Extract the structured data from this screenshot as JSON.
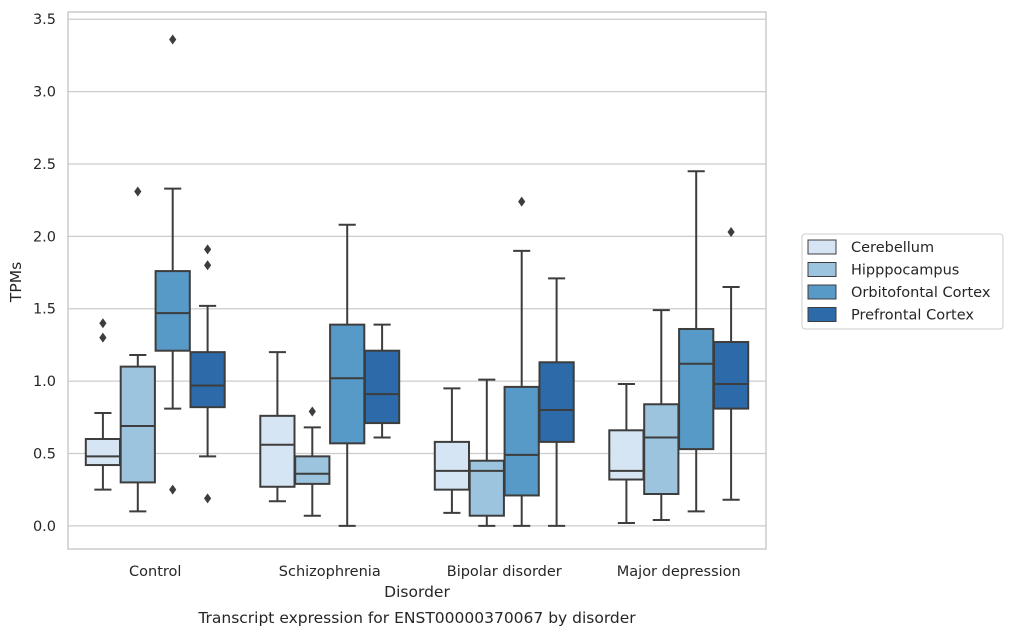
{
  "chart_data": {
    "type": "box",
    "xlabel": "Disorder",
    "ylabel": "TPMs",
    "caption": "Transcript expression for ENST00000370067 by disorder",
    "ylim": [
      -0.16,
      3.55
    ],
    "yticks": [
      "0.0",
      "0.5",
      "1.0",
      "1.5",
      "2.0",
      "2.5",
      "3.0",
      "3.5"
    ],
    "ytick_values": [
      0,
      0.5,
      1,
      1.5,
      2,
      2.5,
      3,
      3.5
    ],
    "grid": "horizontal",
    "legend_position": "right",
    "categories": [
      "Control",
      "Schizophrenia",
      "Bipolar disorder",
      "Major depression"
    ],
    "series": [
      {
        "name": "Cerebellum",
        "color": "#d6e5f3",
        "boxes": [
          {
            "whislo": 0.25,
            "q1": 0.42,
            "med": 0.48,
            "q3": 0.6,
            "whishi": 0.78,
            "fliers": [
              1.3,
              1.4
            ]
          },
          {
            "whislo": 0.17,
            "q1": 0.27,
            "med": 0.56,
            "q3": 0.76,
            "whishi": 1.2,
            "fliers": []
          },
          {
            "whislo": 0.09,
            "q1": 0.25,
            "med": 0.38,
            "q3": 0.58,
            "whishi": 0.95,
            "fliers": []
          },
          {
            "whislo": 0.02,
            "q1": 0.32,
            "med": 0.38,
            "q3": 0.66,
            "whishi": 0.98,
            "fliers": []
          }
        ]
      },
      {
        "name": "Hipppocampus",
        "color": "#9dc4de",
        "boxes": [
          {
            "whislo": 0.1,
            "q1": 0.3,
            "med": 0.69,
            "q3": 1.1,
            "whishi": 1.18,
            "fliers": [
              2.31
            ]
          },
          {
            "whislo": 0.07,
            "q1": 0.29,
            "med": 0.36,
            "q3": 0.48,
            "whishi": 0.68,
            "fliers": [
              0.79
            ]
          },
          {
            "whislo": 0.0,
            "q1": 0.07,
            "med": 0.38,
            "q3": 0.45,
            "whishi": 1.01,
            "fliers": []
          },
          {
            "whislo": 0.04,
            "q1": 0.22,
            "med": 0.61,
            "q3": 0.84,
            "whishi": 1.49,
            "fliers": []
          }
        ]
      },
      {
        "name": "Orbitofontal Cortex",
        "color": "#5799c7",
        "boxes": [
          {
            "whislo": 0.81,
            "q1": 1.21,
            "med": 1.47,
            "q3": 1.76,
            "whishi": 2.33,
            "fliers": [
              0.25,
              3.36
            ]
          },
          {
            "whislo": 0.0,
            "q1": 0.57,
            "med": 1.02,
            "q3": 1.39,
            "whishi": 2.08,
            "fliers": []
          },
          {
            "whislo": 0.0,
            "q1": 0.21,
            "med": 0.49,
            "q3": 0.96,
            "whishi": 1.9,
            "fliers": [
              2.24
            ]
          },
          {
            "whislo": 0.1,
            "q1": 0.53,
            "med": 1.12,
            "q3": 1.36,
            "whishi": 2.45,
            "fliers": []
          }
        ]
      },
      {
        "name": "Prefrontal Cortex",
        "color": "#2d6aa9",
        "boxes": [
          {
            "whislo": 0.48,
            "q1": 0.82,
            "med": 0.97,
            "q3": 1.2,
            "whishi": 1.52,
            "fliers": [
              0.19,
              1.8,
              1.91
            ]
          },
          {
            "whislo": 0.61,
            "q1": 0.71,
            "med": 0.91,
            "q3": 1.21,
            "whishi": 1.39,
            "fliers": []
          },
          {
            "whislo": 0.0,
            "q1": 0.58,
            "med": 0.8,
            "q3": 1.13,
            "whishi": 1.71,
            "fliers": []
          },
          {
            "whislo": 0.18,
            "q1": 0.81,
            "med": 0.98,
            "q3": 1.27,
            "whishi": 1.65,
            "fliers": [
              2.03
            ]
          }
        ]
      }
    ]
  }
}
